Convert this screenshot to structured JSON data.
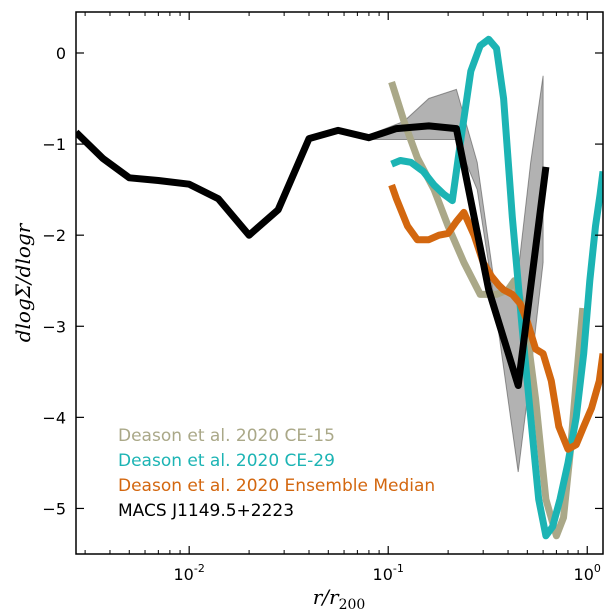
{
  "chart_data": {
    "type": "line",
    "xlabel": "r/r200",
    "ylabel": "dlogΣ/dlogr",
    "xscale": "log",
    "xlim": [
      0.0027,
      1.2
    ],
    "ylim": [
      -5.5,
      0.45
    ],
    "grid": false,
    "legend_placement": "lower-left",
    "x_ticks": [
      {
        "value": 0.01,
        "base": "10",
        "exp": "-2"
      },
      {
        "value": 0.1,
        "base": "10",
        "exp": "-1"
      },
      {
        "value": 1.0,
        "base": "10",
        "exp": "0"
      }
    ],
    "y_ticks": [
      {
        "value": 0,
        "label": "0"
      },
      {
        "value": -1,
        "label": "−1"
      },
      {
        "value": -2,
        "label": "−2"
      },
      {
        "value": -3,
        "label": "−3"
      },
      {
        "value": -4,
        "label": "−4"
      },
      {
        "value": -5,
        "label": "−5"
      }
    ],
    "bands": [
      {
        "color": "#000000",
        "opacity": 0.3,
        "x": [
          0.08,
          0.12,
          0.16,
          0.22,
          0.28,
          0.34,
          0.4,
          0.45,
          0.52,
          0.6
        ],
        "upper": [
          -0.9,
          -0.75,
          -0.5,
          -0.4,
          -1.2,
          -2.5,
          -2.6,
          -2.4,
          -1.2,
          -0.25
        ],
        "lower": [
          -0.95,
          -0.95,
          -0.95,
          -0.95,
          -1.5,
          -2.7,
          -3.8,
          -4.6,
          -3.5,
          -2.3
        ]
      }
    ],
    "series": [
      {
        "name": "Deason et al. 2020 CE-15",
        "color": "#aaa888",
        "x": [
          0.104,
          0.12,
          0.14,
          0.17,
          0.2,
          0.24,
          0.29,
          0.35,
          0.4,
          0.43,
          0.48,
          0.55,
          0.62,
          0.7,
          0.76,
          0.82,
          0.88,
          0.95
        ],
        "values": [
          -0.32,
          -0.75,
          -1.15,
          -1.5,
          -1.9,
          -2.3,
          -2.65,
          -2.65,
          -2.6,
          -2.5,
          -2.8,
          -3.8,
          -4.9,
          -5.3,
          -5.1,
          -4.4,
          -3.6,
          -2.8
        ]
      },
      {
        "name": "Deason et al. 2020 CE-29",
        "color": "#1cb4b4",
        "x": [
          0.104,
          0.115,
          0.13,
          0.15,
          0.17,
          0.19,
          0.21,
          0.23,
          0.26,
          0.29,
          0.32,
          0.35,
          0.38,
          0.42,
          0.47,
          0.52,
          0.57,
          0.62,
          0.67,
          0.73,
          0.8,
          0.88,
          0.96,
          1.03,
          1.1,
          1.16,
          1.2
        ],
        "values": [
          -1.22,
          -1.18,
          -1.2,
          -1.3,
          -1.45,
          -1.55,
          -1.62,
          -1.0,
          -0.2,
          0.08,
          0.15,
          0.05,
          -0.5,
          -1.8,
          -3.0,
          -4.0,
          -4.9,
          -5.3,
          -5.2,
          -4.9,
          -4.5,
          -4.0,
          -3.3,
          -2.5,
          -1.9,
          -1.55,
          -1.3
        ]
      },
      {
        "name": "Deason et al. 2020 Ensemble Median",
        "color": "#d3670f",
        "x": [
          0.104,
          0.11,
          0.125,
          0.14,
          0.16,
          0.18,
          0.2,
          0.22,
          0.24,
          0.27,
          0.3,
          0.33,
          0.36,
          0.38,
          0.42,
          0.46,
          0.5,
          0.55,
          0.6,
          0.66,
          0.72,
          0.8,
          0.88,
          0.96,
          1.05,
          1.15,
          1.2
        ],
        "values": [
          -1.45,
          -1.6,
          -1.9,
          -2.05,
          -2.05,
          -2.0,
          -1.98,
          -1.85,
          -1.75,
          -2.0,
          -2.3,
          -2.45,
          -2.55,
          -2.6,
          -2.65,
          -2.75,
          -2.95,
          -3.25,
          -3.3,
          -3.6,
          -4.1,
          -4.35,
          -4.3,
          -4.1,
          -3.9,
          -3.6,
          -3.3
        ]
      },
      {
        "name": "MACS J1149.5+2223",
        "color": "#000000",
        "x": [
          0.0027,
          0.0037,
          0.005,
          0.007,
          0.01,
          0.014,
          0.02,
          0.028,
          0.04,
          0.056,
          0.08,
          0.11,
          0.16,
          0.22,
          0.32,
          0.45,
          0.62
        ],
        "values": [
          -0.87,
          -1.16,
          -1.37,
          -1.4,
          -1.44,
          -1.6,
          -2.0,
          -1.72,
          -0.94,
          -0.85,
          -0.93,
          -0.83,
          -0.8,
          -0.83,
          -2.6,
          -3.65,
          -1.25
        ]
      }
    ]
  }
}
